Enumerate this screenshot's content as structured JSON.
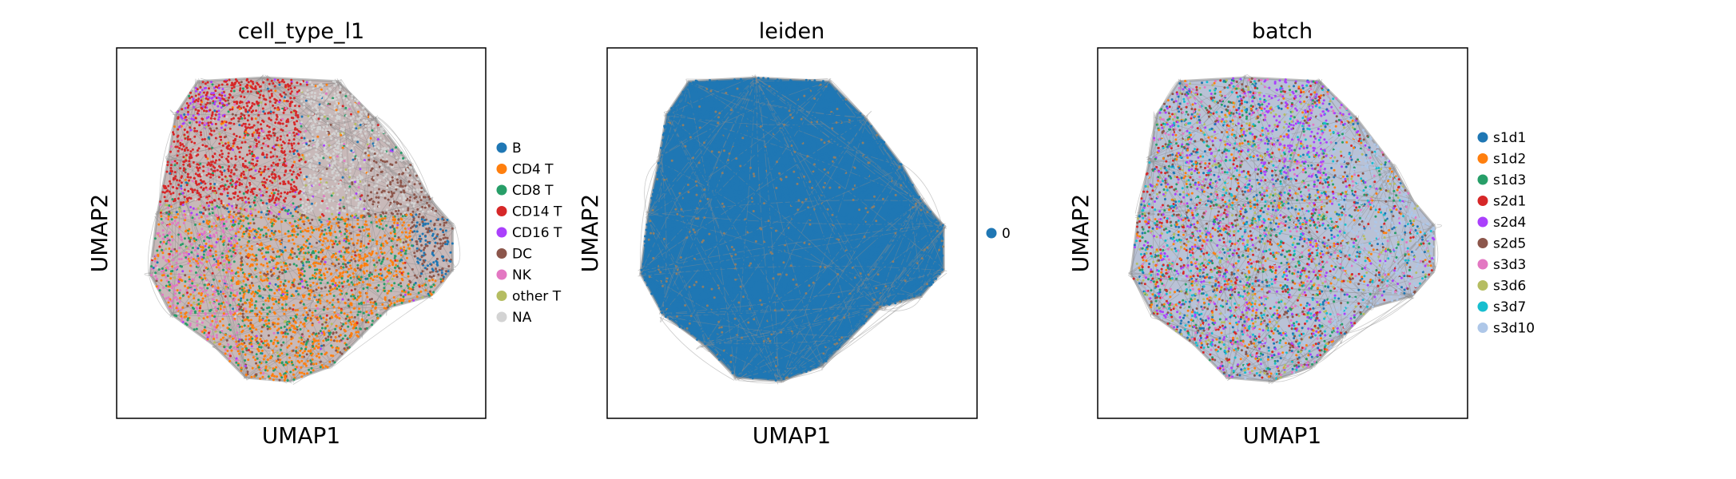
{
  "chart_data": [
    {
      "type": "scatter",
      "title": "cell_type_l1",
      "xlabel": "UMAP1",
      "ylabel": "UMAP2",
      "xticks": false,
      "yticks": false,
      "legend_placement": "right",
      "edges_drawn": true,
      "edge_color": "#8c8c8c",
      "series": [
        {
          "name": "B",
          "color": "#1f77b4"
        },
        {
          "name": "CD4 T",
          "color": "#ff7f0e"
        },
        {
          "name": "CD8 T",
          "color": "#279e68"
        },
        {
          "name": "CD14 T",
          "color": "#d62728"
        },
        {
          "name": "CD16 T",
          "color": "#aa40fc"
        },
        {
          "name": "DC",
          "color": "#8c564b"
        },
        {
          "name": "NK",
          "color": "#e377c2"
        },
        {
          "name": "other T",
          "color": "#b5bd61"
        },
        {
          "name": "NA",
          "color": "#d3d3d3"
        }
      ]
    },
    {
      "type": "scatter",
      "title": "leiden",
      "xlabel": "UMAP1",
      "ylabel": "UMAP2",
      "xticks": false,
      "yticks": false,
      "legend_placement": "right",
      "edges_drawn": true,
      "edge_color": "#8c8c8c",
      "series": [
        {
          "name": "0",
          "color": "#1f77b4"
        }
      ]
    },
    {
      "type": "scatter",
      "title": "batch",
      "xlabel": "UMAP1",
      "ylabel": "UMAP2",
      "xticks": false,
      "yticks": false,
      "legend_placement": "right",
      "edges_drawn": true,
      "edge_color": "#8c8c8c",
      "series": [
        {
          "name": "s1d1",
          "color": "#1f77b4"
        },
        {
          "name": "s1d2",
          "color": "#ff7f0e"
        },
        {
          "name": "s1d3",
          "color": "#279e68"
        },
        {
          "name": "s2d1",
          "color": "#d62728"
        },
        {
          "name": "s2d4",
          "color": "#aa40fc"
        },
        {
          "name": "s2d5",
          "color": "#8c564b"
        },
        {
          "name": "s3d3",
          "color": "#e377c2"
        },
        {
          "name": "s3d6",
          "color": "#b5bd61"
        },
        {
          "name": "s3d7",
          "color": "#17becf"
        },
        {
          "name": "s3d10",
          "color": "#aec7e8"
        }
      ]
    }
  ]
}
